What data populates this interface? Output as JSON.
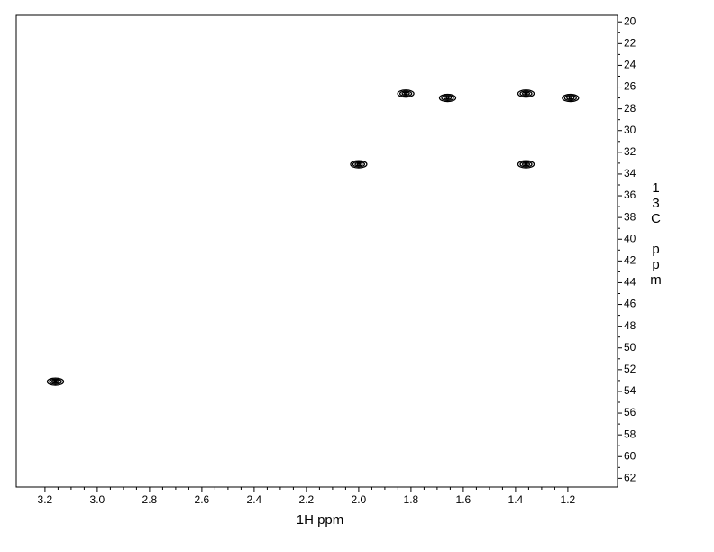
{
  "chart_data": {
    "type": "scatter",
    "xlabel": "1H ppm",
    "ylabel": "13C ppm",
    "x": [
      3.16,
      2.0,
      1.82,
      1.66,
      1.36,
      1.36,
      1.19
    ],
    "series": [
      {
        "color": "#000000",
        "values": [
          53.1,
          33.1,
          26.6,
          27.0,
          26.6,
          33.1,
          27.0
        ]
      }
    ],
    "xlim": [
      3.31,
      1.01
    ],
    "ylim": [
      19.4,
      62.8
    ],
    "xticks": [
      3.2,
      {
        "value": 3,
        "label": "3.0"
      },
      2.8,
      2.6,
      2.4,
      2.2,
      {
        "value": 2,
        "label": "2.0"
      },
      1.8,
      1.6,
      1.4,
      1.2
    ],
    "yticks": [
      20,
      22,
      24,
      26,
      28,
      30,
      32,
      34,
      36,
      38,
      40,
      42,
      44,
      46,
      48,
      50,
      52,
      54,
      56,
      58,
      60,
      62
    ]
  }
}
